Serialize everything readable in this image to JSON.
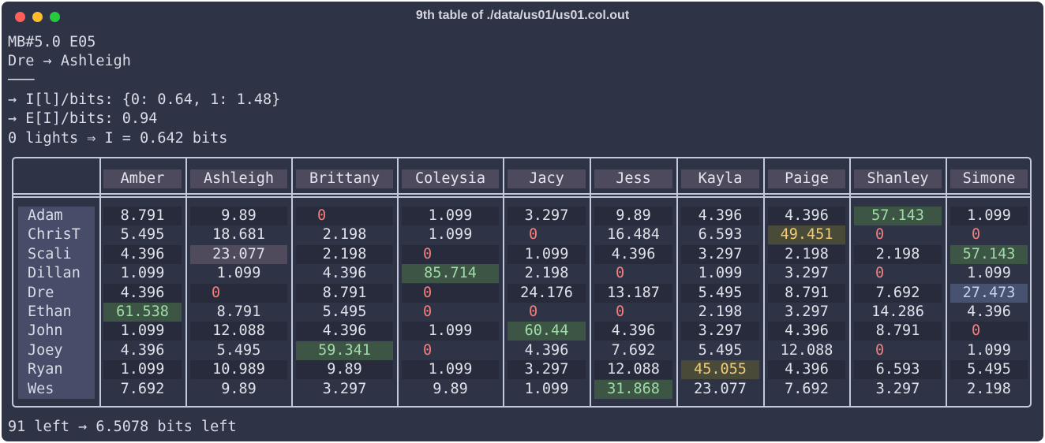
{
  "window": {
    "title": "9th table of ./data/us01/us01.col.out"
  },
  "colors": {
    "background": "#2e3345",
    "text": "#d9dce6",
    "zero": "#f08080",
    "highlight_green": "#3d5544",
    "highlight_yellow": "#4a4a39",
    "highlight_blue": "#475271"
  },
  "header_lines": [
    "MB#5.0 E05",
    "Dre → Ashleigh",
    "───",
    "→ I[l]/bits: {0: 0.64, 1: 1.48}",
    "→ E[I]/bits: 0.94",
    "0 lights ⇒ I = 0.642 bits"
  ],
  "footer_line": "91 left → 6.5078 bits left",
  "table": {
    "columns": [
      "Amber",
      "Ashleigh",
      "Brittany",
      "Coleysia",
      "Jacy",
      "Jess",
      "Kayla",
      "Paige",
      "Shanley",
      "Simone"
    ],
    "rows": [
      {
        "name": "Adam",
        "values": [
          "8.791",
          "9.89",
          "0",
          "1.099",
          "3.297",
          "9.89",
          "4.396",
          "4.396",
          "57.143",
          "1.099"
        ]
      },
      {
        "name": "ChrisT",
        "values": [
          "5.495",
          "18.681",
          "2.198",
          "1.099",
          "0",
          "16.484",
          "6.593",
          "49.451",
          "0",
          "0"
        ]
      },
      {
        "name": "Scali",
        "values": [
          "4.396",
          "23.077",
          "2.198",
          "0",
          "1.099",
          "4.396",
          "3.297",
          "2.198",
          "2.198",
          "57.143"
        ]
      },
      {
        "name": "Dillan",
        "values": [
          "1.099",
          "1.099",
          "4.396",
          "85.714",
          "2.198",
          "0",
          "1.099",
          "3.297",
          "0",
          "1.099"
        ]
      },
      {
        "name": "Dre",
        "values": [
          "4.396",
          "0",
          "8.791",
          "0",
          "24.176",
          "13.187",
          "5.495",
          "8.791",
          "7.692",
          "27.473"
        ]
      },
      {
        "name": "Ethan",
        "values": [
          "61.538",
          "8.791",
          "5.495",
          "0",
          "0",
          "0",
          "2.198",
          "3.297",
          "14.286",
          "4.396"
        ]
      },
      {
        "name": "John",
        "values": [
          "1.099",
          "12.088",
          "4.396",
          "1.099",
          "60.44",
          "4.396",
          "3.297",
          "4.396",
          "8.791",
          "0"
        ]
      },
      {
        "name": "Joey",
        "values": [
          "4.396",
          "5.495",
          "59.341",
          "0",
          "4.396",
          "7.692",
          "5.495",
          "12.088",
          "0",
          "1.099"
        ]
      },
      {
        "name": "Ryan",
        "values": [
          "1.099",
          "10.989",
          "9.89",
          "1.099",
          "3.297",
          "12.088",
          "45.055",
          "4.396",
          "6.593",
          "5.495"
        ]
      },
      {
        "name": "Wes",
        "values": [
          "7.692",
          "9.89",
          "3.297",
          "9.89",
          "1.099",
          "31.868",
          "23.077",
          "7.692",
          "3.297",
          "2.198"
        ]
      }
    ]
  }
}
